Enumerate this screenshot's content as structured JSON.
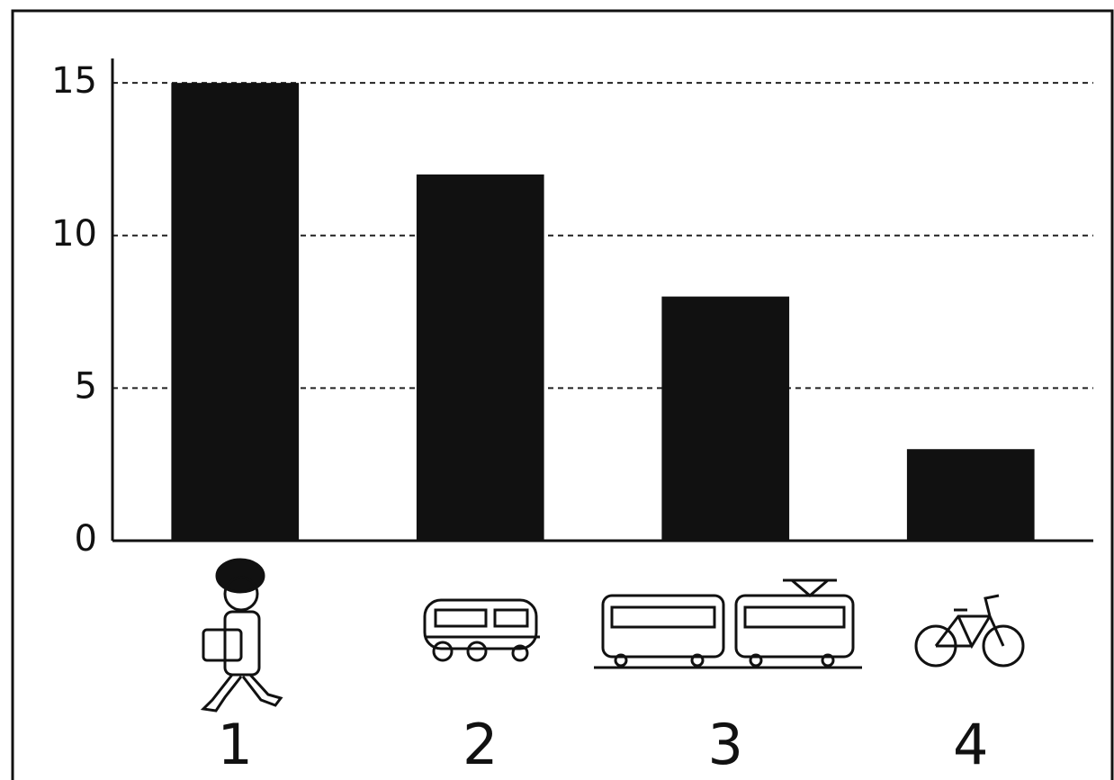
{
  "chart_data": {
    "type": "bar",
    "categories": [
      "1",
      "2",
      "3",
      "4"
    ],
    "values": [
      15,
      12,
      8,
      3
    ],
    "color": "#111111",
    "ylim": [
      0,
      15.8
    ],
    "yticks": [
      0,
      5,
      10,
      15
    ],
    "grid": true
  }
}
